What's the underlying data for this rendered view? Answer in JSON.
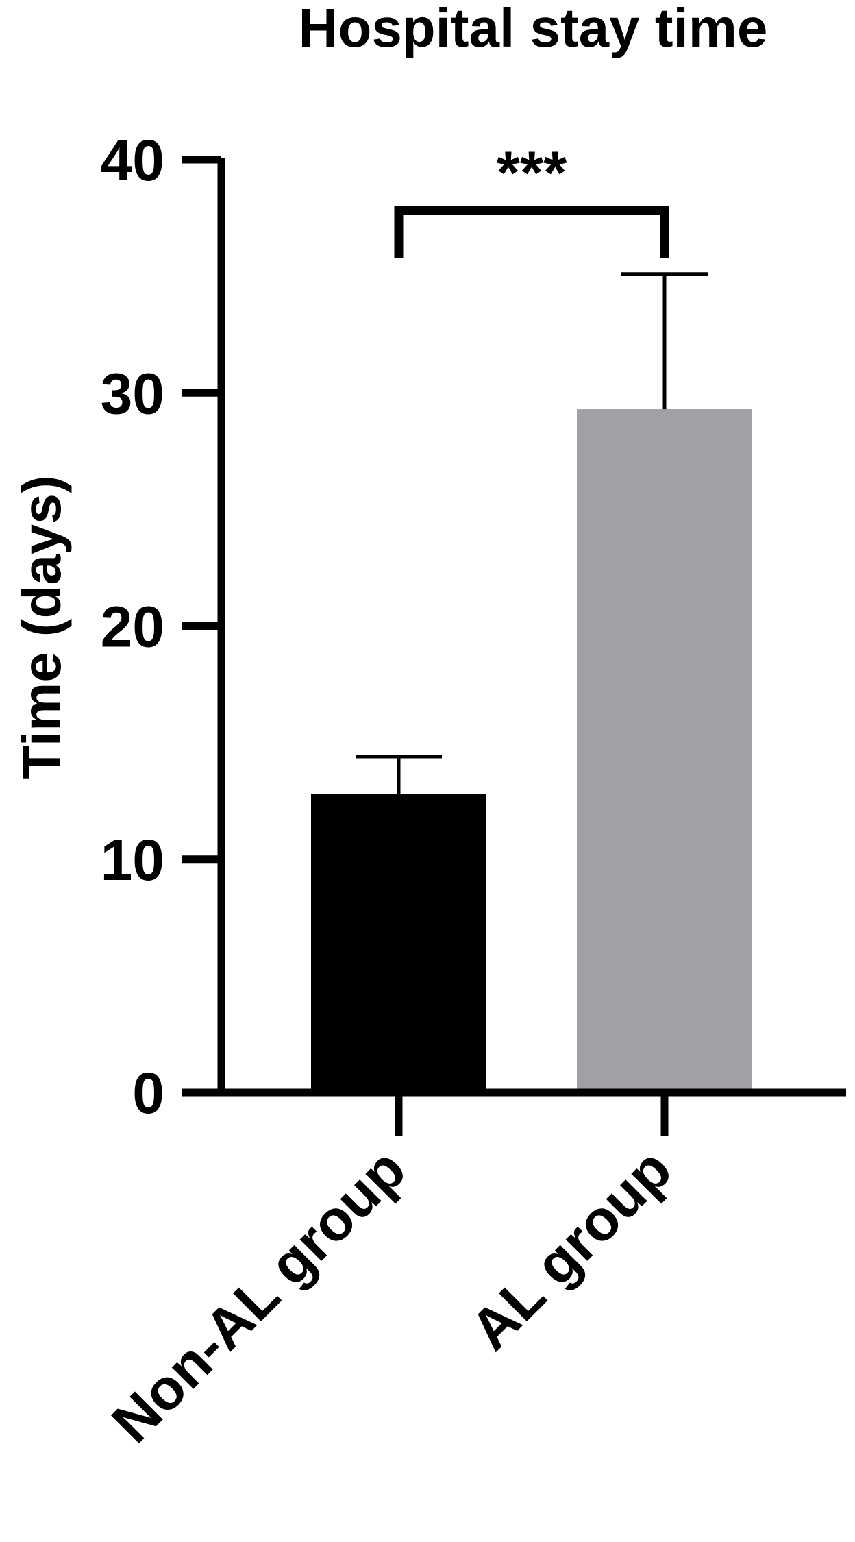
{
  "chart_data": {
    "type": "bar",
    "title": "Hospital stay time",
    "ylabel": "Time (days)",
    "xlabel": "",
    "ylim": [
      0,
      40
    ],
    "yticks": [
      0,
      10,
      20,
      30,
      40
    ],
    "ytick_labels": [
      "0",
      "10",
      "20",
      "30",
      "40"
    ],
    "categories": [
      "Non-AL group",
      "AL group"
    ],
    "values": [
      12.8,
      29.3
    ],
    "error_upper": [
      1.6,
      5.8
    ],
    "bar_colors": [
      "#000000",
      "#a1a0a4"
    ],
    "significance": {
      "between": [
        "Non-AL group",
        "AL group"
      ],
      "label": "***"
    },
    "grid": false,
    "legend": "none"
  }
}
